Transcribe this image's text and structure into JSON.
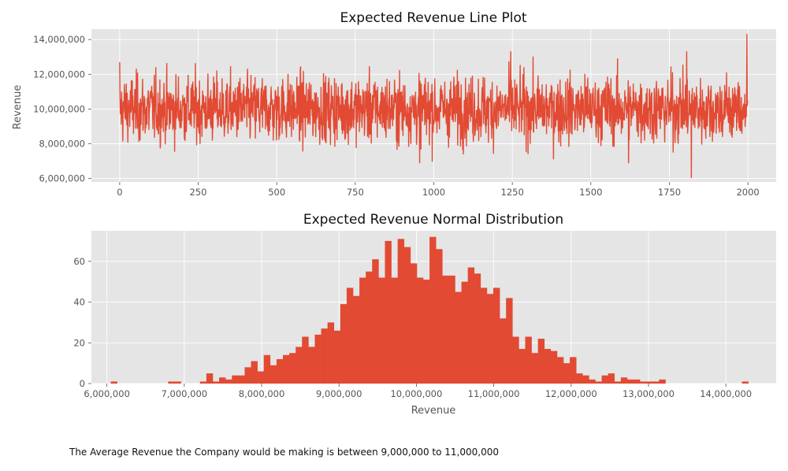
{
  "figure": {
    "caption": "The Average Revenue the Company would be making is between 9,000,000 to 11,000,000",
    "colors": {
      "plot_background": "#e5e5e5",
      "grid": "#ffffff",
      "series": "#e24a33",
      "tick_text": "#555555"
    }
  },
  "chart_data": [
    {
      "type": "line",
      "title": "Expected Revenue Line Plot",
      "xlabel": "",
      "ylabel": "Revenue",
      "xlim": [
        -90,
        2090
      ],
      "ylim": [
        5800000,
        14600000
      ],
      "grid": true,
      "x_ticks": [
        0,
        250,
        500,
        750,
        1000,
        1250,
        1500,
        1750,
        2000
      ],
      "x_tick_labels": [
        "0",
        "250",
        "500",
        "750",
        "1000",
        "1250",
        "1500",
        "1750",
        "2000"
      ],
      "y_ticks": [
        6000000,
        8000000,
        10000000,
        12000000,
        14000000
      ],
      "y_tick_labels": [
        "6,000,000",
        "8,000,000",
        "10,000,000",
        "12,000,000",
        "14,000,000"
      ],
      "series": [
        {
          "n_points": 2000,
          "mean": 10000000,
          "std": 1000000,
          "notable_points": [
            {
              "x": 0,
              "y": 12700000
            },
            {
              "x": 955,
              "y": 6900000
            },
            {
              "x": 1245,
              "y": 13300000
            },
            {
              "x": 1620,
              "y": 6900000
            },
            {
              "x": 1805,
              "y": 13300000
            },
            {
              "x": 1820,
              "y": 6050000
            },
            {
              "x": 1997,
              "y": 14300000
            }
          ]
        }
      ]
    },
    {
      "type": "bar",
      "subtype": "histogram",
      "title": "Expected Revenue Normal Distribution",
      "xlabel": "Revenue",
      "ylabel": "",
      "xlim": [
        5800000,
        14650000
      ],
      "ylim": [
        0,
        75
      ],
      "grid": true,
      "x_ticks": [
        6000000,
        7000000,
        8000000,
        9000000,
        10000000,
        11000000,
        12000000,
        13000000,
        14000000
      ],
      "x_tick_labels": [
        "6,000,000",
        "7,000,000",
        "8,000,000",
        "9,000,000",
        "10,000,000",
        "11,000,000",
        "12,000,000",
        "13,000,000",
        "14,000,000"
      ],
      "y_ticks": [
        0,
        20,
        40,
        60
      ],
      "y_tick_labels": [
        "0",
        "20",
        "40",
        "60"
      ],
      "bin_start": 6050000,
      "bin_width": 82400,
      "values": [
        1,
        0,
        0,
        0,
        0,
        0,
        0,
        0,
        0,
        1,
        1,
        0,
        0,
        0,
        1,
        5,
        1,
        3,
        2,
        4,
        4,
        8,
        11,
        6,
        14,
        9,
        12,
        14,
        15,
        18,
        23,
        18,
        24,
        27,
        30,
        26,
        39,
        47,
        43,
        52,
        55,
        61,
        52,
        70,
        52,
        71,
        67,
        59,
        52,
        51,
        72,
        66,
        53,
        53,
        45,
        50,
        57,
        54,
        47,
        44,
        47,
        32,
        42,
        23,
        17,
        23,
        15,
        22,
        17,
        16,
        13,
        10,
        13,
        5,
        4,
        2,
        1,
        4,
        5,
        1,
        3,
        2,
        2,
        1,
        1,
        1,
        2,
        0,
        0,
        0,
        0,
        0,
        0,
        0,
        0,
        0,
        0,
        0,
        0,
        1
      ]
    }
  ]
}
